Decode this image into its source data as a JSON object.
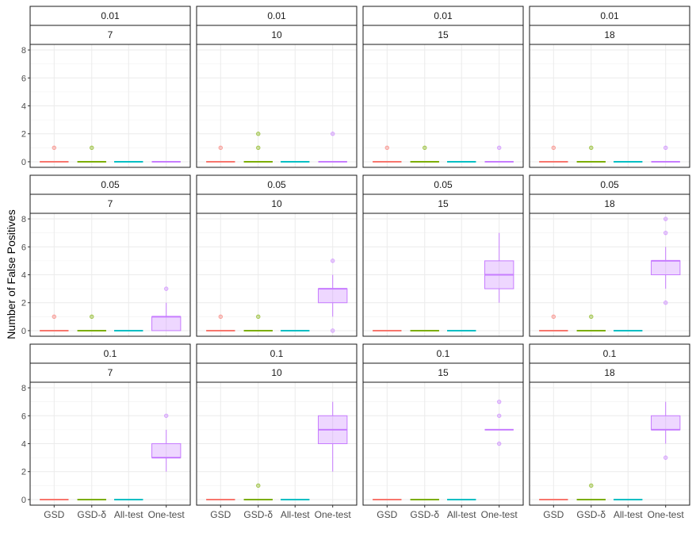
{
  "chart_data": {
    "type": "box",
    "ylabel": "Number of False Positives",
    "ylim": [
      -0.4,
      8.4
    ],
    "yticks": [
      0,
      2,
      4,
      6,
      8
    ],
    "grid": true,
    "facet_rows": [
      "0.01",
      "0.05",
      "0.1"
    ],
    "facet_cols": [
      "7",
      "10",
      "15",
      "18"
    ],
    "categories": [
      "GSD",
      "GSD-δ",
      "All-test",
      "One-test"
    ],
    "series_colors": {
      "GSD": "#F8766D",
      "GSD-δ": "#7CAE00",
      "All-test": "#00BFC4",
      "One-test": "#C77CFF"
    },
    "panels": [
      {
        "row": "0.01",
        "col": "7",
        "boxes": [
          {
            "cat": "GSD",
            "q1": 0,
            "median": 0,
            "q3": 0,
            "lo": 0,
            "hi": 0,
            "outliers": [
              1
            ]
          },
          {
            "cat": "GSD-δ",
            "q1": 0,
            "median": 0,
            "q3": 0,
            "lo": 0,
            "hi": 0,
            "outliers": [
              1
            ]
          },
          {
            "cat": "All-test",
            "q1": 0,
            "median": 0,
            "q3": 0,
            "lo": 0,
            "hi": 0,
            "outliers": []
          },
          {
            "cat": "One-test",
            "q1": 0,
            "median": 0,
            "q3": 0,
            "lo": 0,
            "hi": 0,
            "outliers": []
          }
        ]
      },
      {
        "row": "0.01",
        "col": "10",
        "boxes": [
          {
            "cat": "GSD",
            "q1": 0,
            "median": 0,
            "q3": 0,
            "lo": 0,
            "hi": 0,
            "outliers": [
              1
            ]
          },
          {
            "cat": "GSD-δ",
            "q1": 0,
            "median": 0,
            "q3": 0,
            "lo": 0,
            "hi": 0,
            "outliers": [
              1,
              2
            ]
          },
          {
            "cat": "All-test",
            "q1": 0,
            "median": 0,
            "q3": 0,
            "lo": 0,
            "hi": 0,
            "outliers": []
          },
          {
            "cat": "One-test",
            "q1": 0,
            "median": 0,
            "q3": 0,
            "lo": 0,
            "hi": 0,
            "outliers": [
              2
            ]
          }
        ]
      },
      {
        "row": "0.01",
        "col": "15",
        "boxes": [
          {
            "cat": "GSD",
            "q1": 0,
            "median": 0,
            "q3": 0,
            "lo": 0,
            "hi": 0,
            "outliers": [
              1
            ]
          },
          {
            "cat": "GSD-δ",
            "q1": 0,
            "median": 0,
            "q3": 0,
            "lo": 0,
            "hi": 0,
            "outliers": [
              1
            ]
          },
          {
            "cat": "All-test",
            "q1": 0,
            "median": 0,
            "q3": 0,
            "lo": 0,
            "hi": 0,
            "outliers": []
          },
          {
            "cat": "One-test",
            "q1": 0,
            "median": 0,
            "q3": 0,
            "lo": 0,
            "hi": 0,
            "outliers": [
              1
            ]
          }
        ]
      },
      {
        "row": "0.01",
        "col": "18",
        "boxes": [
          {
            "cat": "GSD",
            "q1": 0,
            "median": 0,
            "q3": 0,
            "lo": 0,
            "hi": 0,
            "outliers": [
              1
            ]
          },
          {
            "cat": "GSD-δ",
            "q1": 0,
            "median": 0,
            "q3": 0,
            "lo": 0,
            "hi": 0,
            "outliers": [
              1
            ]
          },
          {
            "cat": "All-test",
            "q1": 0,
            "median": 0,
            "q3": 0,
            "lo": 0,
            "hi": 0,
            "outliers": []
          },
          {
            "cat": "One-test",
            "q1": 0,
            "median": 0,
            "q3": 0,
            "lo": 0,
            "hi": 0,
            "outliers": [
              1
            ]
          }
        ]
      },
      {
        "row": "0.05",
        "col": "7",
        "boxes": [
          {
            "cat": "GSD",
            "q1": 0,
            "median": 0,
            "q3": 0,
            "lo": 0,
            "hi": 0,
            "outliers": [
              1
            ]
          },
          {
            "cat": "GSD-δ",
            "q1": 0,
            "median": 0,
            "q3": 0,
            "lo": 0,
            "hi": 0,
            "outliers": [
              1
            ]
          },
          {
            "cat": "All-test",
            "q1": 0,
            "median": 0,
            "q3": 0,
            "lo": 0,
            "hi": 0,
            "outliers": []
          },
          {
            "cat": "One-test",
            "q1": 0,
            "median": 1,
            "q3": 1,
            "lo": 0,
            "hi": 2,
            "outliers": [
              3
            ]
          }
        ]
      },
      {
        "row": "0.05",
        "col": "10",
        "boxes": [
          {
            "cat": "GSD",
            "q1": 0,
            "median": 0,
            "q3": 0,
            "lo": 0,
            "hi": 0,
            "outliers": [
              1
            ]
          },
          {
            "cat": "GSD-δ",
            "q1": 0,
            "median": 0,
            "q3": 0,
            "lo": 0,
            "hi": 0,
            "outliers": [
              1
            ]
          },
          {
            "cat": "All-test",
            "q1": 0,
            "median": 0,
            "q3": 0,
            "lo": 0,
            "hi": 0,
            "outliers": []
          },
          {
            "cat": "One-test",
            "q1": 2,
            "median": 3,
            "q3": 3,
            "lo": 1,
            "hi": 4,
            "outliers": [
              0,
              5
            ]
          }
        ]
      },
      {
        "row": "0.05",
        "col": "15",
        "boxes": [
          {
            "cat": "GSD",
            "q1": 0,
            "median": 0,
            "q3": 0,
            "lo": 0,
            "hi": 0,
            "outliers": []
          },
          {
            "cat": "GSD-δ",
            "q1": 0,
            "median": 0,
            "q3": 0,
            "lo": 0,
            "hi": 0,
            "outliers": []
          },
          {
            "cat": "All-test",
            "q1": 0,
            "median": 0,
            "q3": 0,
            "lo": 0,
            "hi": 0,
            "outliers": []
          },
          {
            "cat": "One-test",
            "q1": 3,
            "median": 4,
            "q3": 5,
            "lo": 2,
            "hi": 7,
            "outliers": []
          }
        ]
      },
      {
        "row": "0.05",
        "col": "18",
        "boxes": [
          {
            "cat": "GSD",
            "q1": 0,
            "median": 0,
            "q3": 0,
            "lo": 0,
            "hi": 0,
            "outliers": [
              1
            ]
          },
          {
            "cat": "GSD-δ",
            "q1": 0,
            "median": 0,
            "q3": 0,
            "lo": 0,
            "hi": 0,
            "outliers": [
              1
            ]
          },
          {
            "cat": "All-test",
            "q1": 0,
            "median": 0,
            "q3": 0,
            "lo": 0,
            "hi": 0,
            "outliers": []
          },
          {
            "cat": "One-test",
            "q1": 4,
            "median": 5,
            "q3": 5,
            "lo": 3,
            "hi": 6,
            "outliers": [
              2,
              7,
              8
            ]
          }
        ]
      },
      {
        "row": "0.1",
        "col": "7",
        "boxes": [
          {
            "cat": "GSD",
            "q1": 0,
            "median": 0,
            "q3": 0,
            "lo": 0,
            "hi": 0,
            "outliers": []
          },
          {
            "cat": "GSD-δ",
            "q1": 0,
            "median": 0,
            "q3": 0,
            "lo": 0,
            "hi": 0,
            "outliers": []
          },
          {
            "cat": "All-test",
            "q1": 0,
            "median": 0,
            "q3": 0,
            "lo": 0,
            "hi": 0,
            "outliers": []
          },
          {
            "cat": "One-test",
            "q1": 3,
            "median": 3,
            "q3": 4,
            "lo": 2,
            "hi": 5,
            "outliers": [
              6
            ]
          }
        ]
      },
      {
        "row": "0.1",
        "col": "10",
        "boxes": [
          {
            "cat": "GSD",
            "q1": 0,
            "median": 0,
            "q3": 0,
            "lo": 0,
            "hi": 0,
            "outliers": []
          },
          {
            "cat": "GSD-δ",
            "q1": 0,
            "median": 0,
            "q3": 0,
            "lo": 0,
            "hi": 0,
            "outliers": [
              1
            ]
          },
          {
            "cat": "All-test",
            "q1": 0,
            "median": 0,
            "q3": 0,
            "lo": 0,
            "hi": 0,
            "outliers": []
          },
          {
            "cat": "One-test",
            "q1": 4,
            "median": 5,
            "q3": 6,
            "lo": 2,
            "hi": 7,
            "outliers": []
          }
        ]
      },
      {
        "row": "0.1",
        "col": "15",
        "boxes": [
          {
            "cat": "GSD",
            "q1": 0,
            "median": 0,
            "q3": 0,
            "lo": 0,
            "hi": 0,
            "outliers": []
          },
          {
            "cat": "GSD-δ",
            "q1": 0,
            "median": 0,
            "q3": 0,
            "lo": 0,
            "hi": 0,
            "outliers": []
          },
          {
            "cat": "All-test",
            "q1": 0,
            "median": 0,
            "q3": 0,
            "lo": 0,
            "hi": 0,
            "outliers": []
          },
          {
            "cat": "One-test",
            "q1": 5,
            "median": 5,
            "q3": 5,
            "lo": 5,
            "hi": 5,
            "outliers": [
              4,
              6,
              7
            ]
          }
        ]
      },
      {
        "row": "0.1",
        "col": "18",
        "boxes": [
          {
            "cat": "GSD",
            "q1": 0,
            "median": 0,
            "q3": 0,
            "lo": 0,
            "hi": 0,
            "outliers": []
          },
          {
            "cat": "GSD-δ",
            "q1": 0,
            "median": 0,
            "q3": 0,
            "lo": 0,
            "hi": 0,
            "outliers": [
              1
            ]
          },
          {
            "cat": "All-test",
            "q1": 0,
            "median": 0,
            "q3": 0,
            "lo": 0,
            "hi": 0,
            "outliers": []
          },
          {
            "cat": "One-test",
            "q1": 5,
            "median": 5,
            "q3": 6,
            "lo": 4,
            "hi": 7,
            "outliers": [
              3
            ]
          }
        ]
      }
    ]
  }
}
